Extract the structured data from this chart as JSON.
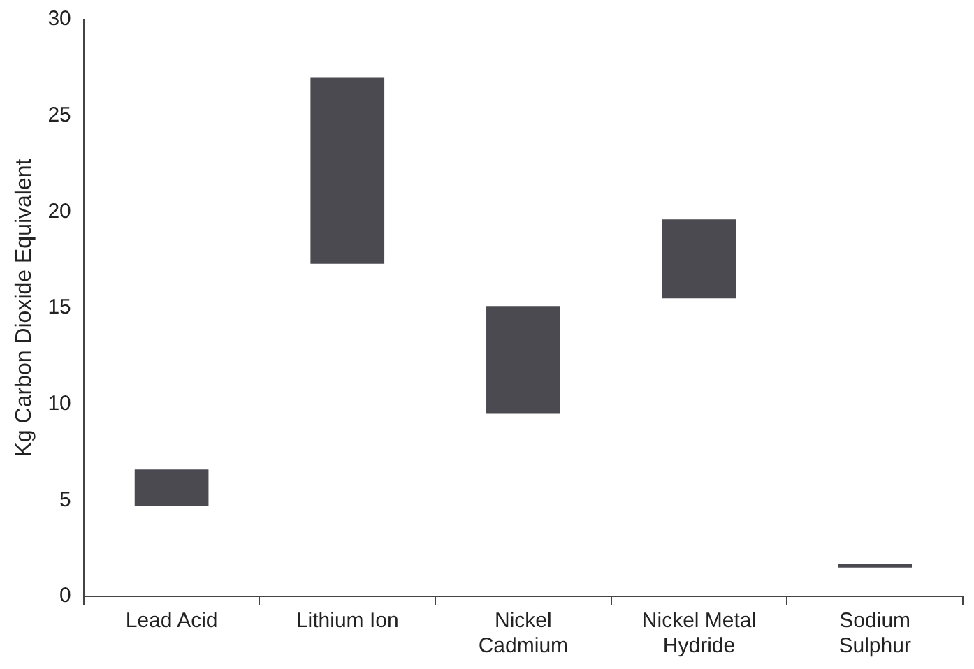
{
  "chart_data": {
    "type": "bar",
    "ylabel": "Kg Carbon Dioxide Equivalent",
    "categories": [
      "Lead Acid",
      "Lithium Ion",
      "Nickel\nCadmium",
      "Nickel Metal\nHydride",
      "Sodium\nSulphur"
    ],
    "base": [
      4.7,
      17.3,
      9.5,
      15.5,
      1.5
    ],
    "values": [
      1.9,
      9.7,
      5.6,
      4.1,
      0.2
    ],
    "color": "#4a4a50",
    "ylim": [
      0,
      30
    ],
    "yticks": [
      0,
      5,
      10,
      15,
      20,
      25,
      30
    ],
    "grid": false,
    "legend": false
  }
}
